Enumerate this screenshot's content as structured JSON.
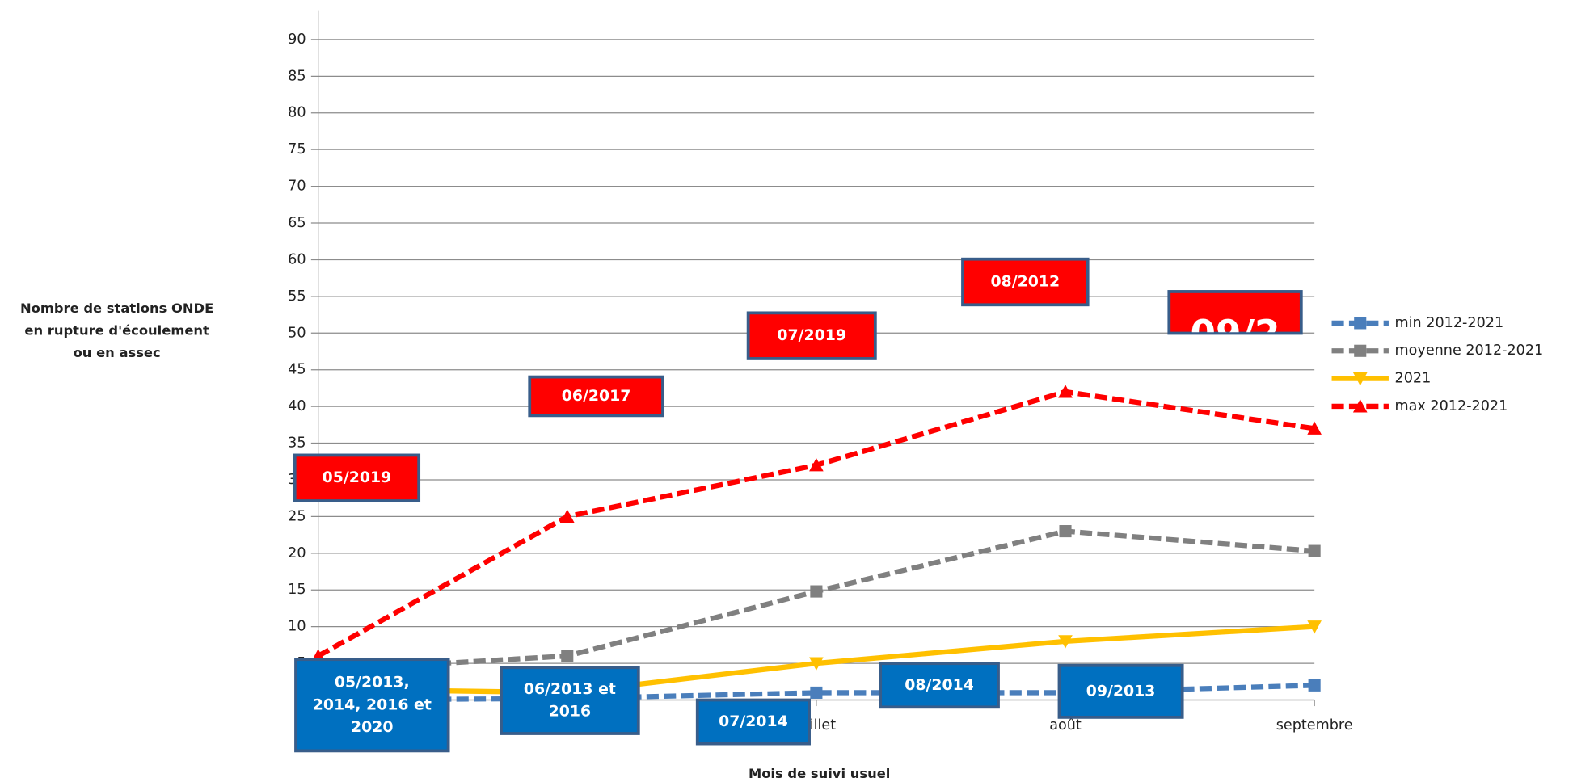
{
  "chart_data": {
    "type": "line",
    "ylabel": [
      "Nombre de stations ONDE",
      "en rupture d'écoulement",
      "ou en assec"
    ],
    "xlabel": "Mois de suivi usuel",
    "categories": [
      null,
      null,
      "juillet",
      "août",
      "septembre"
    ],
    "ylim": [
      0,
      94
    ],
    "yticks": [
      0,
      5,
      10,
      15,
      20,
      25,
      30,
      35,
      40,
      45,
      50,
      55,
      60,
      65,
      70,
      75,
      80,
      85,
      90
    ],
    "grid": true,
    "legend": "right",
    "series": [
      {
        "name": "min 2012-2021",
        "color": "#4a7ebb",
        "dash": true,
        "marker": "square",
        "values": [
          0,
          0.2,
          1,
          1,
          2
        ]
      },
      {
        "name": "moyenne 2012-2021",
        "color": "#808080",
        "dash": true,
        "marker": "square",
        "values": [
          4,
          6,
          14.8,
          23,
          20.3
        ]
      },
      {
        "name": "2021",
        "color": "#ffc000",
        "dash": false,
        "marker": "triangle-down",
        "values": [
          1.5,
          1,
          5,
          8,
          10
        ]
      },
      {
        "name": "max 2012-2021",
        "color": "#ff0000",
        "dash": true,
        "marker": "triangle-up",
        "values": [
          6,
          25,
          32,
          42,
          37
        ]
      }
    ],
    "annotations": [
      {
        "lines": [
          "05/2019"
        ],
        "color": "#ff0000"
      },
      {
        "lines": [
          "06/2017"
        ],
        "color": "#ff0000"
      },
      {
        "lines": [
          "07/2019"
        ],
        "color": "#ff0000"
      },
      {
        "lines": [
          "08/2012"
        ],
        "color": "#ff0000"
      },
      {
        "lines": [
          "09/2"
        ],
        "color": "#ff0000"
      },
      {
        "lines": [
          "05/2013,",
          "2014, 2016 et",
          "2020"
        ],
        "color": "#0070c0"
      },
      {
        "lines": [
          "06/2013 et",
          "2016"
        ],
        "color": "#0070c0"
      },
      {
        "lines": [
          "07/2014"
        ],
        "color": "#0070c0"
      },
      {
        "lines": [
          "08/2014"
        ],
        "color": "#0070c0"
      },
      {
        "lines": [
          "09/2013"
        ],
        "color": "#0070c0"
      }
    ]
  }
}
